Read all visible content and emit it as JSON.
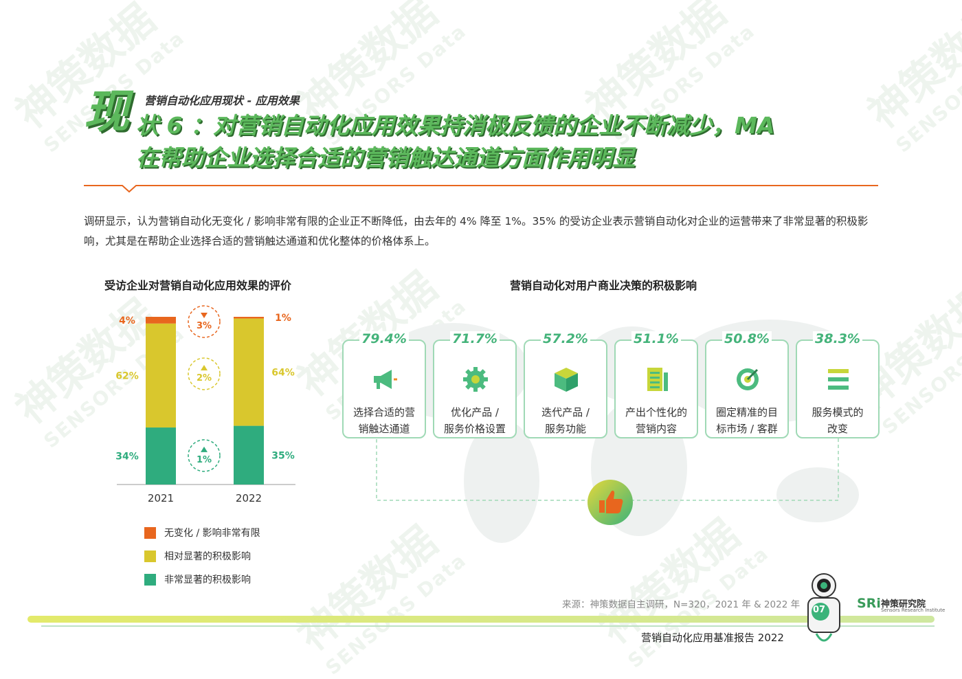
{
  "header": {
    "supertitle": "营销自动化应用现状 - 应用效果",
    "big_char": "现",
    "title_line1": "状 6 ：对营销自动化应用效果持消极反馈的企业不断减少，MA",
    "title_line2": "在帮助企业选择合适的营销触达通道方面作用明显"
  },
  "intro": "调研显示，认为营销自动化无变化 / 影响非常有限的企业正不断降低，由去年的 4% 降至 1%。35% 的受访企业表示营销自动化对企业的运营带来了非常显著的积极影响，尤其是在帮助企业选择合适的营销触达通道和优化整体的价格体系上。",
  "watermark": {
    "cn": "神策数据",
    "en": "SENSORS Data"
  },
  "chart_data": [
    {
      "type": "bar",
      "stacked": true,
      "title": "受访企业对营销自动化应用效果的评价",
      "categories": [
        "2021",
        "2022"
      ],
      "series": [
        {
          "name": "非常显著的积极影响",
          "values": [
            34,
            35
          ],
          "labels": [
            "34%",
            "35%"
          ],
          "color": "#2fac7e"
        },
        {
          "name": "相对显著的积极影响",
          "values": [
            62,
            64
          ],
          "labels": [
            "62%",
            "64%"
          ],
          "color": "#d9c72d"
        },
        {
          "name": "无变化 / 影响非常有限",
          "values": [
            4,
            1
          ],
          "labels": [
            "4%",
            "1%"
          ],
          "color": "#e8661e"
        }
      ],
      "changes": [
        {
          "label": "3%",
          "direction": "down",
          "series": "无变化 / 影响非常有限",
          "color": "#e8661e"
        },
        {
          "label": "2%",
          "direction": "up",
          "series": "相对显著的积极影响",
          "color": "#d9c72d"
        },
        {
          "label": "1%",
          "direction": "up",
          "series": "非常显著的积极影响",
          "color": "#2fac7e"
        }
      ]
    },
    {
      "type": "table",
      "title": "营销自动化对用户商业决策的积极影响",
      "items": [
        {
          "value": "79.4%",
          "label_line1": "选择合适的营",
          "label_line2": "销触达通道",
          "icon": "megaphone-icon"
        },
        {
          "value": "71.7%",
          "label_line1": "优化产品 /",
          "label_line2": "服务价格设置",
          "icon": "gear-icon"
        },
        {
          "value": "57.2%",
          "label_line1": "迭代产品 /",
          "label_line2": "服务功能",
          "icon": "box-icon"
        },
        {
          "value": "51.1%",
          "label_line1": "产出个性化的",
          "label_line2": "营销内容",
          "icon": "document-icon"
        },
        {
          "value": "50.8%",
          "label_line1": "圈定精准的目",
          "label_line2": "标市场 / 客群",
          "icon": "target-icon"
        },
        {
          "value": "38.3%",
          "label_line1": "服务模式的",
          "label_line2": "改变",
          "icon": "menu-icon"
        }
      ],
      "center_icon": "thumbs-up-icon"
    }
  ],
  "footer": {
    "source": "来源：神策数据自主调研，N=320，2021 年 & 2022 年",
    "report_title": "营销自动化应用基准报告 2022",
    "page_number": "07",
    "brand_mark": "SRi",
    "brand_name": "神策研究院",
    "brand_sub": "Sensors Research Institute"
  },
  "colors": {
    "green": "#5cb85c",
    "orange": "#e8661e",
    "yellow": "#d9c72d",
    "teal": "#2fac7e"
  }
}
